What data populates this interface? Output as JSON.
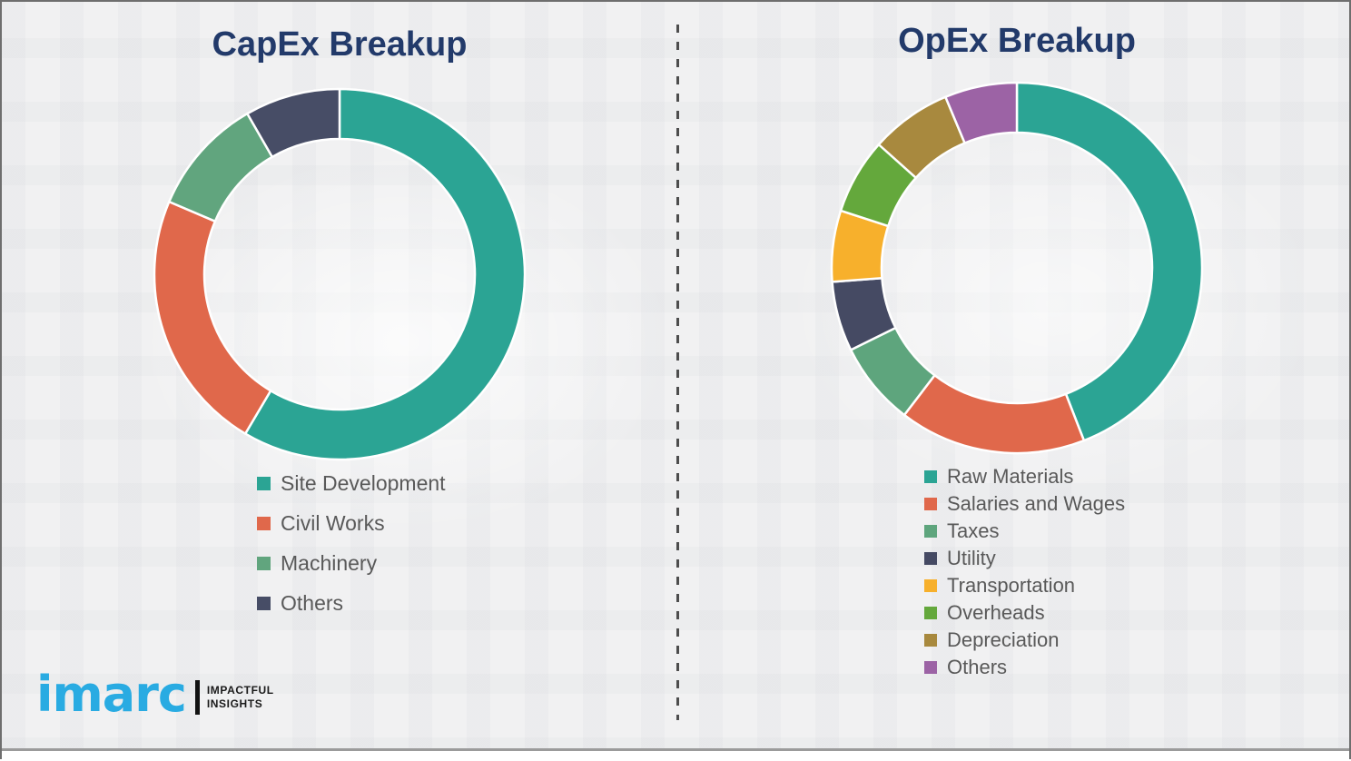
{
  "page": {
    "background": "#f1f1f2",
    "divider_color": "#4d4d4d",
    "title_color": "#223a6a",
    "legend_text_color": "#595959"
  },
  "chart_data": [
    {
      "type": "pie",
      "subtype": "donut",
      "title": "CapEx Breakup",
      "categories": [
        "Site Development",
        "Civil Works",
        "Machinery",
        "Others"
      ],
      "values": [
        58.5,
        22.9,
        10.3,
        8.3
      ],
      "unit": "percent",
      "colors": [
        "#2ba494",
        "#e0684b",
        "#61a57e",
        "#474d66"
      ],
      "start_angle_deg": 0,
      "direction": "clockwise",
      "inner_radius_ratio": 0.73,
      "legend_position": "below-left",
      "slice_gap_color": "#ffffff"
    },
    {
      "type": "pie",
      "subtype": "donut",
      "title": "OpEx Breakup",
      "categories": [
        "Raw Materials",
        "Salaries and Wages",
        "Taxes",
        "Utility",
        "Transportation",
        "Overheads",
        "Depreciation",
        "Others"
      ],
      "values": [
        44.1,
        16.3,
        7.3,
        6.1,
        6.2,
        6.6,
        7.1,
        6.3
      ],
      "unit": "percent",
      "colors": [
        "#2ba494",
        "#e0684b",
        "#5ea57d",
        "#454a63",
        "#f7b02c",
        "#64a83c",
        "#a8893e",
        "#9c63a5"
      ],
      "start_angle_deg": 0,
      "direction": "clockwise",
      "inner_radius_ratio": 0.73,
      "legend_position": "below-left",
      "slice_gap_color": "#ffffff"
    }
  ],
  "logo": {
    "brand": "imarc",
    "tagline_line1": "IMPACTFUL",
    "tagline_line2": "INSIGHTS",
    "brand_color": "#29abe2"
  }
}
